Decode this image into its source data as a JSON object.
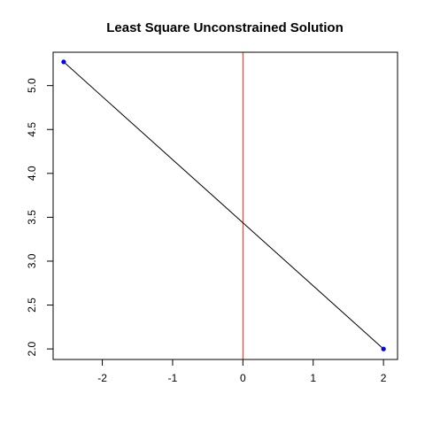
{
  "chart_data": {
    "type": "line",
    "title": "Least Square Unconstrained Solution",
    "xlabel": "",
    "ylabel": "",
    "xlim": [
      -2.7,
      2.2
    ],
    "ylim": [
      1.88,
      5.38
    ],
    "x_ticks": [
      -2,
      -1,
      0,
      1,
      2
    ],
    "x_tick_labels": [
      "-2",
      "-1",
      "0",
      "1",
      "2"
    ],
    "y_ticks": [
      2.0,
      2.5,
      3.0,
      3.5,
      4.0,
      4.5,
      5.0
    ],
    "y_tick_labels": [
      "2.0",
      "2.5",
      "3.0",
      "3.5",
      "4.0",
      "4.5",
      "5.0"
    ],
    "grid": false,
    "series": [
      {
        "points": [
          {
            "x": -2.55,
            "y": 5.27
          },
          {
            "x": 2.0,
            "y": 2.0
          }
        ]
      }
    ],
    "vline": {
      "x": 0,
      "color": "#c0392b"
    },
    "colors": {
      "line": "#000000",
      "points": "#0000ff",
      "vline": "#c0392b"
    }
  }
}
